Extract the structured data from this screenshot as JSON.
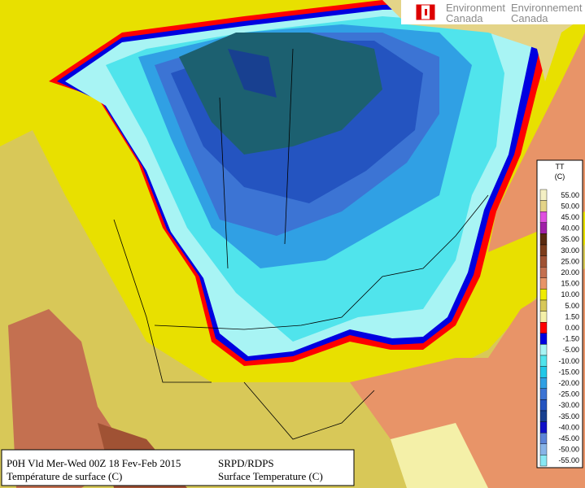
{
  "header": {
    "logo_line1_en": "Environment",
    "logo_line1_fr": "Environnement",
    "logo_line2_en": "Canada",
    "logo_line2_fr": "Canada"
  },
  "legend": {
    "title": "TT",
    "unit": "(C)",
    "entries": [
      {
        "label": "55.00",
        "color": "#f4f0c4"
      },
      {
        "label": "50.00",
        "color": "#e4d488"
      },
      {
        "label": "45.00",
        "color": "#e050e0"
      },
      {
        "label": "40.00",
        "color": "#a020a8"
      },
      {
        "label": "35.00",
        "color": "#5a2a10"
      },
      {
        "label": "30.00",
        "color": "#7c3c1c"
      },
      {
        "label": "25.00",
        "color": "#a05234"
      },
      {
        "label": "20.00",
        "color": "#c47050"
      },
      {
        "label": "15.00",
        "color": "#e89468"
      },
      {
        "label": "10.00",
        "color": "#f0ec00"
      },
      {
        "label": "5.00",
        "color": "#d8c858"
      },
      {
        "label": "1.50",
        "color": "#f4f0a8"
      },
      {
        "label": "0.00",
        "color": "#ff0000"
      },
      {
        "label": "-1.50",
        "color": "#0000e0"
      },
      {
        "label": "-5.00",
        "color": "#a8f4f4"
      },
      {
        "label": "-10.00",
        "color": "#50e4ec"
      },
      {
        "label": "-15.00",
        "color": "#20c8e8"
      },
      {
        "label": "-20.00",
        "color": "#30a0e4"
      },
      {
        "label": "-25.00",
        "color": "#3c74d4"
      },
      {
        "label": "-30.00",
        "color": "#2454c0"
      },
      {
        "label": "-35.00",
        "color": "#184090"
      },
      {
        "label": "-40.00",
        "color": "#1010c8"
      },
      {
        "label": "-45.00",
        "color": "#5c84d8"
      },
      {
        "label": "-50.00",
        "color": "#88b4e8"
      },
      {
        "label": "-55.00",
        "color": "#88e8f4"
      }
    ]
  },
  "footer": {
    "validity": "P0H Vld Mer-Wed 00Z 18 Fev-Feb 2015",
    "field_fr": "Température de surface (C)",
    "model": "SRPD/RDPS",
    "field_en": "Surface Temperature (C)"
  }
}
